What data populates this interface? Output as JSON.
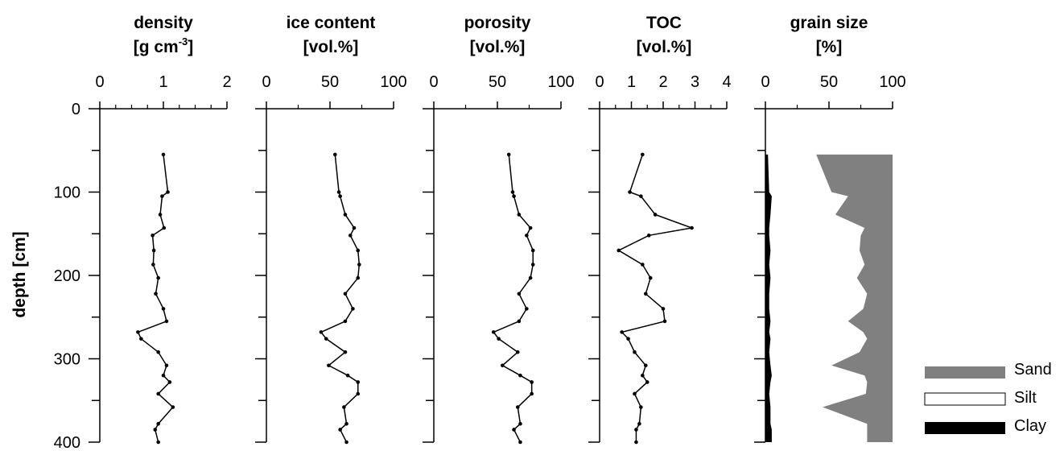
{
  "chart_data": [
    {
      "type": "line",
      "title": "density",
      "unit_base": "[g cm",
      "unit_sup": "-3",
      "unit_end": "]",
      "ylabel": "depth [cm]",
      "xlim": [
        0,
        2
      ],
      "xticks": [
        "0",
        "1",
        "2"
      ],
      "ylim": [
        400,
        0
      ],
      "yticks": [
        "0",
        "100",
        "200",
        "300",
        "400"
      ],
      "depth": [
        55,
        100,
        105,
        127,
        143,
        152,
        170,
        187,
        203,
        222,
        240,
        255,
        268,
        276,
        292,
        308,
        320,
        328,
        342,
        358,
        378,
        385,
        400
      ],
      "values": [
        1.0,
        1.07,
        0.98,
        0.95,
        1.01,
        0.83,
        0.85,
        0.84,
        0.92,
        0.88,
        1.0,
        1.05,
        0.6,
        0.65,
        0.92,
        1.05,
        1.0,
        1.1,
        0.92,
        1.15,
        0.92,
        0.87,
        0.92
      ]
    },
    {
      "type": "line",
      "title": "ice content",
      "unit": "[vol.%]",
      "xlim": [
        0,
        100
      ],
      "xticks": [
        "0",
        "50",
        "100"
      ],
      "ylim": [
        400,
        0
      ],
      "depth": [
        55,
        100,
        105,
        127,
        143,
        152,
        170,
        187,
        203,
        222,
        240,
        255,
        268,
        276,
        292,
        308,
        320,
        328,
        342,
        358,
        378,
        385,
        400
      ],
      "values": [
        54,
        57,
        58,
        62,
        69,
        66,
        72,
        73,
        72,
        62,
        68,
        62,
        43,
        47,
        62,
        49,
        64,
        72,
        72,
        61,
        63,
        58,
        63
      ]
    },
    {
      "type": "line",
      "title": "porosity",
      "unit": "[vol.%]",
      "xlim": [
        0,
        100
      ],
      "xticks": [
        "0",
        "50",
        "100"
      ],
      "ylim": [
        400,
        0
      ],
      "depth": [
        55,
        100,
        105,
        127,
        143,
        152,
        170,
        187,
        203,
        222,
        240,
        255,
        268,
        276,
        292,
        308,
        320,
        328,
        342,
        358,
        378,
        385,
        400
      ],
      "values": [
        59,
        62,
        63,
        67,
        76,
        73,
        78,
        78,
        76,
        67,
        73,
        67,
        47,
        51,
        66,
        54,
        68,
        77,
        77,
        66,
        68,
        63,
        68
      ]
    },
    {
      "type": "line",
      "title": "TOC",
      "unit": "[vol.%]",
      "xlim": [
        0,
        4
      ],
      "xticks": [
        "0",
        "1",
        "2",
        "3",
        "4"
      ],
      "ylim": [
        400,
        0
      ],
      "depth": [
        55,
        100,
        105,
        127,
        143,
        152,
        170,
        187,
        203,
        222,
        240,
        255,
        268,
        276,
        292,
        308,
        320,
        328,
        342,
        358,
        378,
        385,
        400
      ],
      "values": [
        1.35,
        0.95,
        1.3,
        1.75,
        2.9,
        1.55,
        0.6,
        1.35,
        1.6,
        1.45,
        2.0,
        2.05,
        0.7,
        0.9,
        1.1,
        1.45,
        1.35,
        1.5,
        1.1,
        1.3,
        1.25,
        1.15,
        1.15
      ]
    },
    {
      "type": "area",
      "title": "grain size",
      "unit": "[%]",
      "xlim": [
        0,
        100
      ],
      "xticks": [
        "0",
        "50",
        "100"
      ],
      "ylim": [
        400,
        0
      ],
      "depth": [
        55,
        100,
        105,
        127,
        143,
        152,
        170,
        187,
        203,
        222,
        240,
        255,
        268,
        276,
        292,
        308,
        320,
        328,
        342,
        358,
        378,
        385,
        400
      ],
      "clay": [
        2,
        3,
        5,
        4,
        3,
        3,
        4,
        3,
        4,
        3,
        3,
        4,
        3,
        4,
        3,
        4,
        5,
        4,
        3,
        4,
        4,
        5,
        5
      ],
      "clay_silt": [
        40,
        52,
        65,
        55,
        78,
        75,
        74,
        78,
        72,
        80,
        77,
        65,
        77,
        80,
        74,
        52,
        78,
        80,
        79,
        45,
        80,
        80,
        80
      ],
      "series": [
        {
          "name": "Sand",
          "color": "#808080"
        },
        {
          "name": "Silt",
          "color": "#ffffff"
        },
        {
          "name": "Clay",
          "color": "#000000"
        }
      ]
    }
  ]
}
